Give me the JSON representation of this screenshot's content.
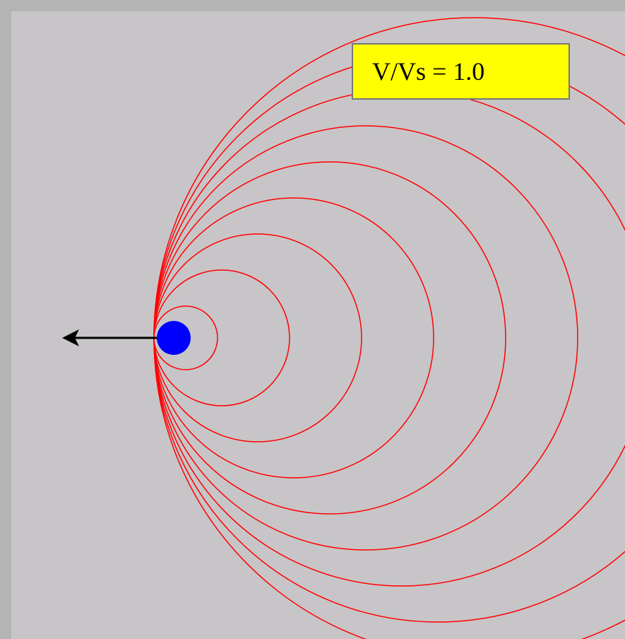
{
  "label": "V/Vs = 1.0"
}
